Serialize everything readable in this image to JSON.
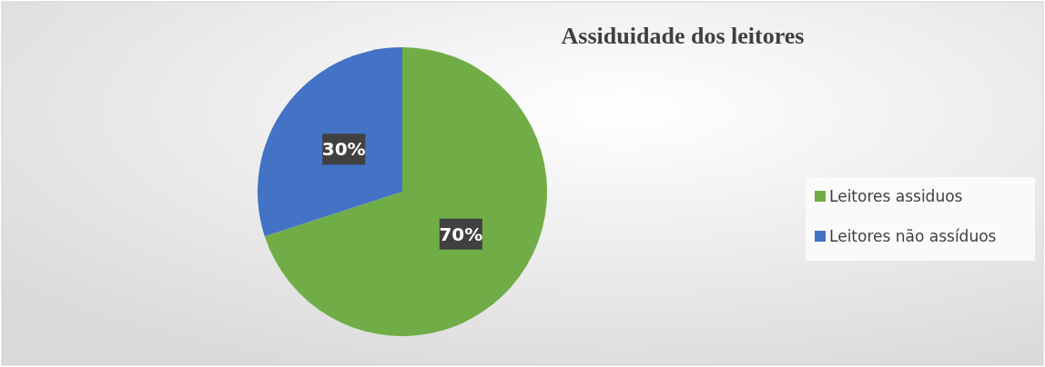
{
  "chart_data": {
    "type": "pie",
    "title": "Assiduidade dos leitores",
    "categories": [
      "Leitores assiduos",
      "Leitores não assíduos"
    ],
    "values": [
      70,
      30
    ],
    "colors": [
      "#70ad47",
      "#4472c4"
    ],
    "value_labels": [
      "70%",
      "30%"
    ],
    "legend": "right"
  }
}
